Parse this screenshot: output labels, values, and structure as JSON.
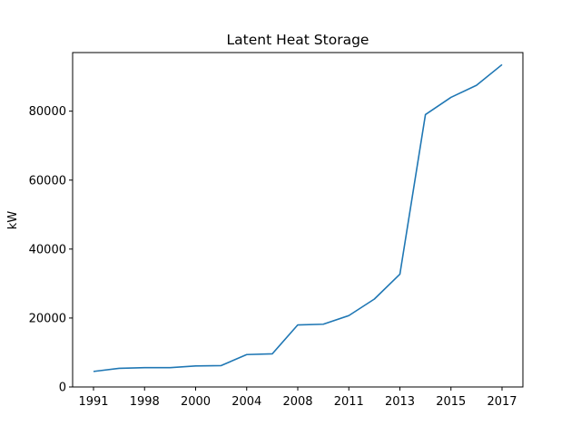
{
  "chart_data": {
    "type": "line",
    "title": "Latent Heat Storage",
    "xlabel": "",
    "ylabel": "kW",
    "x_ticks": [
      "1991",
      "1998",
      "2000",
      "2004",
      "2008",
      "2011",
      "2013",
      "2015",
      "2017"
    ],
    "y_ticks": [
      "0",
      "20000",
      "40000",
      "60000",
      "80000"
    ],
    "ylim": [
      0,
      97000
    ],
    "grid": false,
    "legend": "none",
    "series": [
      {
        "color": "#1f77b4",
        "points": [
          {
            "x": "1991",
            "y": 4500
          },
          {
            "x": "",
            "y": 5400
          },
          {
            "x": "1998",
            "y": 5600
          },
          {
            "x": "",
            "y": 5600
          },
          {
            "x": "2000",
            "y": 6100
          },
          {
            "x": "",
            "y": 6200
          },
          {
            "x": "2004",
            "y": 9400
          },
          {
            "x": "",
            "y": 9600
          },
          {
            "x": "2008",
            "y": 18000
          },
          {
            "x": "",
            "y": 18200
          },
          {
            "x": "2011",
            "y": 20700
          },
          {
            "x": "",
            "y": 25500
          },
          {
            "x": "2013",
            "y": 32700
          },
          {
            "x": "",
            "y": 79000
          },
          {
            "x": "2015",
            "y": 84000
          },
          {
            "x": "",
            "y": 87500
          },
          {
            "x": "2017",
            "y": 93500
          }
        ]
      }
    ]
  }
}
